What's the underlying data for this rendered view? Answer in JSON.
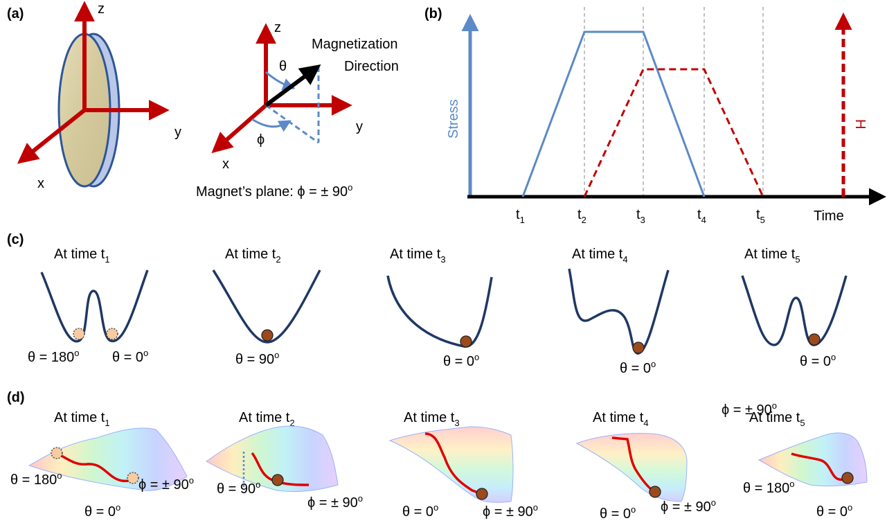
{
  "panels": {
    "a": "(a)",
    "b": "(b)",
    "c": "(c)",
    "d": "(d)"
  },
  "colors": {
    "red": "#c00000",
    "blue": "#5b8ac7",
    "navy": "#1f3864",
    "ball": "#9c4a1c",
    "ghost": "#f8cba0",
    "disk": "#d8cfa8"
  },
  "panel_a": {
    "axes_left": {
      "z": "z",
      "y": "y",
      "x": "x"
    },
    "axes_right": {
      "z": "z",
      "y": "y",
      "x": "x"
    },
    "theta": "θ",
    "phi": "ϕ",
    "magnetization": [
      "Magnetization",
      "Direction"
    ],
    "caption_prefix": "Magnet’s plane:  ϕ = ± 90",
    "caption_sup": "o"
  },
  "panel_b": {
    "ylabel": "Stress",
    "h_label": "H",
    "xlabel": "Time",
    "ticks": [
      {
        "base": "t",
        "sub": "1"
      },
      {
        "base": "t",
        "sub": "2"
      },
      {
        "base": "t",
        "sub": "3"
      },
      {
        "base": "t",
        "sub": "4"
      },
      {
        "base": "t",
        "sub": "5"
      }
    ]
  },
  "panel_c": {
    "titles": [
      {
        "text": "At time t",
        "sub": "1"
      },
      {
        "text": "At time t",
        "sub": "2"
      },
      {
        "text": "At time t",
        "sub": "3"
      },
      {
        "text": "At time t",
        "sub": "4"
      },
      {
        "text": "At time t",
        "sub": "5"
      }
    ],
    "labels": [
      {
        "text": "θ = 180",
        "sup": "o"
      },
      {
        "text": "θ = 0",
        "sup": "o"
      },
      {
        "text": "θ = 90",
        "sup": "o"
      },
      {
        "text": "θ = 0",
        "sup": "o"
      },
      {
        "text": "θ = 0",
        "sup": "o"
      },
      {
        "text": "θ = 0",
        "sup": "o"
      }
    ]
  },
  "panel_d": {
    "titles": [
      {
        "text": "At time t",
        "sub": "1"
      },
      {
        "text": "At time t",
        "sub": "2"
      },
      {
        "text": "At time t",
        "sub": "3"
      },
      {
        "text": "At time t",
        "sub": "4"
      },
      {
        "text": "At time t",
        "sub": "5"
      }
    ],
    "labels": [
      {
        "text": "θ = 180",
        "sup": "o"
      },
      {
        "text": "ϕ = ± 90",
        "sup": "o"
      },
      {
        "text": "θ = 0",
        "sup": "o"
      },
      {
        "text": "θ = 90",
        "sup": "o"
      },
      {
        "text": "ϕ = ± 90",
        "sup": "o"
      },
      {
        "text": "θ = 0",
        "sup": "o"
      },
      {
        "text": "ϕ = ± 90",
        "sup": "o"
      },
      {
        "text": "θ = 0",
        "sup": "o"
      },
      {
        "text": "ϕ = ± 90",
        "sup": "o"
      },
      {
        "text": "ϕ = ± 90",
        "sup": "o"
      },
      {
        "text": "θ = 180",
        "sup": "o"
      },
      {
        "text": "θ = 0",
        "sup": "o"
      }
    ]
  }
}
